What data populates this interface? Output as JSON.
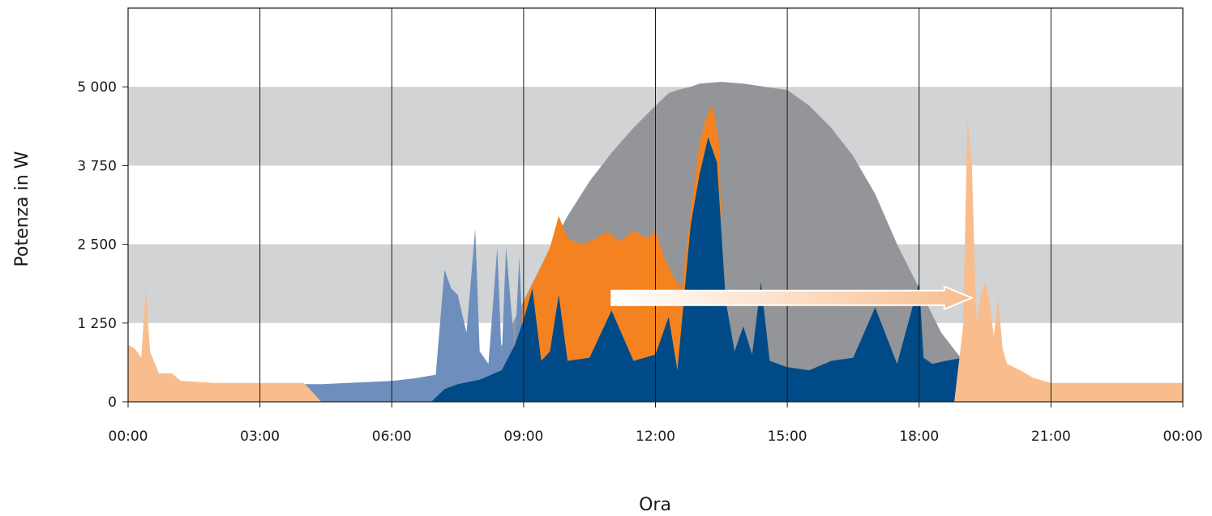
{
  "chart_data": {
    "type": "area",
    "title": "",
    "xlabel": "Ora",
    "ylabel": "Potenza in W",
    "x_unit": "hours",
    "xlim": [
      0,
      24
    ],
    "ylim": [
      0,
      6250
    ],
    "x_ticks": [
      "00:00",
      "03:00",
      "06:00",
      "09:00",
      "12:00",
      "15:00",
      "18:00",
      "21:00",
      "00:00"
    ],
    "y_ticks": [
      {
        "value": 0,
        "label": "0"
      },
      {
        "value": 1250,
        "label": "1 250"
      },
      {
        "value": 2500,
        "label": "2 500"
      },
      {
        "value": 3750,
        "label": "3 750"
      },
      {
        "value": 5000,
        "label": "5 000"
      }
    ],
    "grid": "horizontal bands, vertical lines every 3 hours",
    "legend": "none",
    "colors": {
      "pv_generation": "#939598",
      "direct_consumption_shifted": "#f58220",
      "direct_consumption": "#004b87",
      "consumption_blue_light": "#6e8fbd",
      "grid_purchase": "#f9bd8d",
      "band": "#d1d3d4",
      "arrow_start": "#ffffff",
      "arrow_end": "#f9bd8d"
    },
    "series": [
      {
        "color_key": "pv_generation",
        "x": [
          6.8,
          7.5,
          8.0,
          8.5,
          9.0,
          9.5,
          10.0,
          10.5,
          11.0,
          11.5,
          12.0,
          12.3,
          12.5,
          12.8,
          13.0,
          13.5,
          14.0,
          14.5,
          15.0,
          15.5,
          16.0,
          16.5,
          17.0,
          17.5,
          18.0,
          18.5,
          19.0,
          19.5,
          20.0,
          20.5,
          20.8
        ],
        "y": [
          0,
          100,
          400,
          900,
          1600,
          2300,
          2950,
          3500,
          3950,
          4350,
          4700,
          4900,
          4950,
          5000,
          5050,
          5080,
          5050,
          5000,
          4950,
          4700,
          4350,
          3900,
          3300,
          2500,
          1800,
          1100,
          650,
          350,
          150,
          50,
          0
        ]
      },
      {
        "color_key": "direct_consumption_shifted",
        "x": [
          8.8,
          9.0,
          9.3,
          9.6,
          9.8,
          10.0,
          10.3,
          10.6,
          10.9,
          11.2,
          11.5,
          11.8,
          12.0,
          12.2,
          12.4,
          12.6,
          12.8,
          13.0,
          13.15,
          13.3,
          13.45,
          13.6
        ],
        "y": [
          0,
          1600,
          2000,
          2450,
          2950,
          2600,
          2500,
          2580,
          2700,
          2550,
          2720,
          2600,
          2700,
          2300,
          2000,
          1800,
          3000,
          4100,
          4500,
          4720,
          4100,
          0
        ]
      },
      {
        "color_key": "consumption_blue_light",
        "x": [
          4.0,
          4.4,
          5.0,
          6.0,
          6.5,
          7.0,
          7.2,
          7.35,
          7.5,
          7.7,
          7.9,
          8.0,
          8.2,
          8.4,
          8.5,
          8.6,
          8.8,
          8.9,
          9.0
        ],
        "y": [
          280,
          280,
          300,
          330,
          370,
          430,
          2100,
          1800,
          1700,
          1100,
          2750,
          800,
          600,
          2450,
          700,
          2450,
          800,
          2300,
          700
        ]
      },
      {
        "color_key": "direct_consumption",
        "x": [
          6.9,
          7.2,
          7.5,
          8.0,
          8.5,
          8.8,
          9.0,
          9.2,
          9.4,
          9.6,
          9.8,
          10.0,
          10.5,
          11.0,
          11.5,
          12.0,
          12.3,
          12.5,
          12.8,
          13.0,
          13.2,
          13.4,
          13.6,
          13.8,
          14.0,
          14.2,
          14.4,
          14.6,
          15.0,
          15.5,
          16.0,
          16.5,
          17.0,
          17.5,
          18.0,
          18.1,
          18.3,
          18.6,
          19.0,
          19.5,
          20.0,
          20.5
        ],
        "y": [
          0,
          200,
          280,
          350,
          500,
          900,
          1300,
          1800,
          650,
          800,
          1700,
          650,
          700,
          1450,
          650,
          750,
          1350,
          500,
          2800,
          3600,
          4200,
          3800,
          1600,
          800,
          1200,
          750,
          1900,
          650,
          550,
          500,
          650,
          700,
          1500,
          600,
          1900,
          700,
          600,
          650,
          700,
          450,
          200,
          0
        ]
      },
      {
        "color_key": "grid_purchase",
        "x": [
          0.0,
          0.15,
          0.3,
          0.4,
          0.5,
          0.7,
          1.0,
          1.2,
          2.0,
          3.0,
          3.5,
          4.0,
          4.4,
          18.8,
          19.0,
          19.1,
          19.2,
          19.3,
          19.4,
          19.5,
          19.6,
          19.7,
          19.8,
          19.9,
          20.0,
          20.3,
          20.6,
          21.0,
          22.0,
          23.0,
          24.0
        ],
        "y": [
          900,
          850,
          700,
          1800,
          800,
          450,
          450,
          330,
          300,
          300,
          300,
          300,
          0,
          0,
          1200,
          4500,
          3800,
          1300,
          1700,
          1900,
          1600,
          1050,
          1650,
          850,
          600,
          500,
          380,
          300,
          300,
          300,
          300
        ]
      }
    ],
    "annotations": [
      {
        "type": "arrow",
        "direction": "right",
        "from_x": 11.0,
        "to_x": 19.2,
        "y": 1650
      }
    ]
  }
}
